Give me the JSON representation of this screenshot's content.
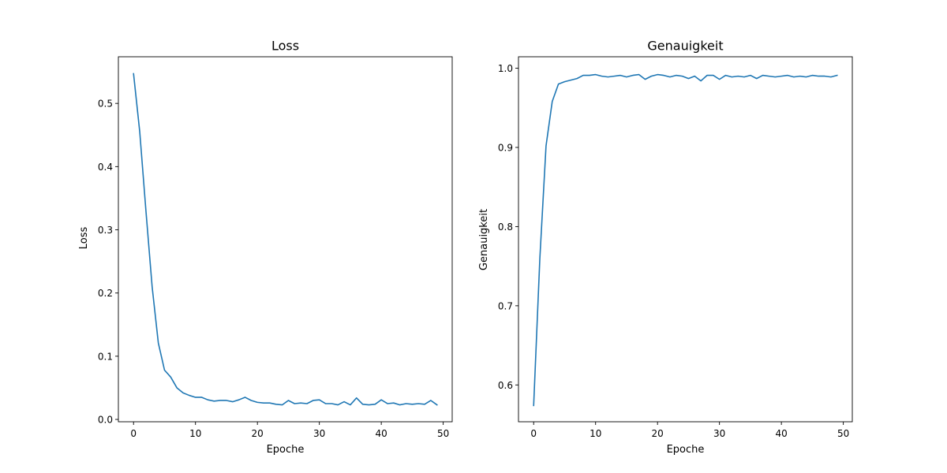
{
  "colors": {
    "line": "#1f77b4",
    "axes": "#000000",
    "background": "#ffffff"
  },
  "chart_data": [
    {
      "type": "line",
      "title": "Loss",
      "xlabel": "Epoche",
      "ylabel": "Loss",
      "xlim": [
        -2.45,
        51.45
      ],
      "ylim": [
        -0.0037,
        0.5738
      ],
      "xticks": [
        0,
        10,
        20,
        30,
        40,
        50
      ],
      "xtick_labels": [
        "0",
        "10",
        "20",
        "30",
        "40",
        "50"
      ],
      "yticks": [
        0.0,
        0.1,
        0.2,
        0.3,
        0.4,
        0.5
      ],
      "ytick_labels": [
        "0.0",
        "0.1",
        "0.2",
        "0.3",
        "0.4",
        "0.5"
      ],
      "grid": false,
      "series": [
        {
          "name": "Loss",
          "x": [
            0,
            1,
            2,
            3,
            4,
            5,
            6,
            7,
            8,
            9,
            10,
            11,
            12,
            13,
            14,
            15,
            16,
            17,
            18,
            19,
            20,
            21,
            22,
            23,
            24,
            25,
            26,
            27,
            28,
            29,
            30,
            31,
            32,
            33,
            34,
            35,
            36,
            37,
            38,
            39,
            40,
            41,
            42,
            43,
            44,
            45,
            46,
            47,
            48,
            49
          ],
          "values": [
            0.547,
            0.455,
            0.33,
            0.21,
            0.121,
            0.078,
            0.067,
            0.05,
            0.042,
            0.038,
            0.035,
            0.035,
            0.031,
            0.029,
            0.03,
            0.03,
            0.028,
            0.031,
            0.035,
            0.03,
            0.027,
            0.026,
            0.026,
            0.024,
            0.023,
            0.03,
            0.025,
            0.026,
            0.025,
            0.03,
            0.031,
            0.025,
            0.025,
            0.023,
            0.028,
            0.023,
            0.034,
            0.024,
            0.023,
            0.024,
            0.031,
            0.025,
            0.026,
            0.023,
            0.025,
            0.024,
            0.025,
            0.024,
            0.03,
            0.023
          ]
        }
      ]
    },
    {
      "type": "line",
      "title": "Genauigkeit",
      "xlabel": "Epoche",
      "ylabel": "Genauigkeit",
      "xlim": [
        -2.45,
        51.45
      ],
      "ylim": [
        0.5535,
        1.0145
      ],
      "xticks": [
        0,
        10,
        20,
        30,
        40,
        50
      ],
      "xtick_labels": [
        "0",
        "10",
        "20",
        "30",
        "40",
        "50"
      ],
      "yticks": [
        0.6,
        0.7,
        0.8,
        0.9,
        1.0
      ],
      "ytick_labels": [
        "0.6",
        "0.7",
        "0.8",
        "0.9",
        "1.0"
      ],
      "grid": false,
      "series": [
        {
          "name": "Genauigkeit",
          "x": [
            0,
            1,
            2,
            3,
            4,
            5,
            6,
            7,
            8,
            9,
            10,
            11,
            12,
            13,
            14,
            15,
            16,
            17,
            18,
            19,
            20,
            21,
            22,
            23,
            24,
            25,
            26,
            27,
            28,
            29,
            30,
            31,
            32,
            33,
            34,
            35,
            36,
            37,
            38,
            39,
            40,
            41,
            42,
            43,
            44,
            45,
            46,
            47,
            48,
            49
          ],
          "values": [
            0.574,
            0.76,
            0.902,
            0.958,
            0.98,
            0.983,
            0.985,
            0.987,
            0.991,
            0.991,
            0.992,
            0.99,
            0.989,
            0.99,
            0.991,
            0.989,
            0.991,
            0.992,
            0.986,
            0.99,
            0.992,
            0.991,
            0.989,
            0.991,
            0.99,
            0.987,
            0.99,
            0.984,
            0.991,
            0.991,
            0.986,
            0.991,
            0.989,
            0.99,
            0.989,
            0.991,
            0.987,
            0.991,
            0.99,
            0.989,
            0.99,
            0.991,
            0.989,
            0.99,
            0.989,
            0.991,
            0.99,
            0.99,
            0.989,
            0.991
          ]
        }
      ]
    }
  ]
}
